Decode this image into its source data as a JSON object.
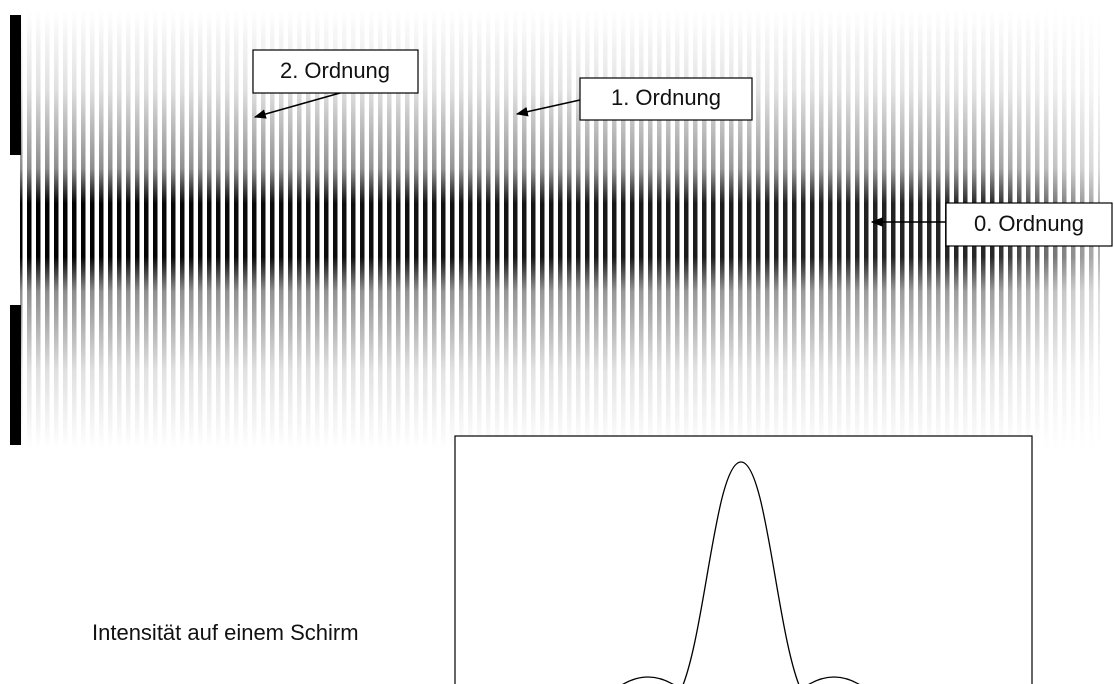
{
  "annotations": [
    {
      "label": "2. Ordnung"
    },
    {
      "label": "1. Ordnung"
    },
    {
      "label": "0. Ordnung"
    }
  ],
  "intensity_plot": {
    "label": "Intensität auf einem Schirm"
  }
}
